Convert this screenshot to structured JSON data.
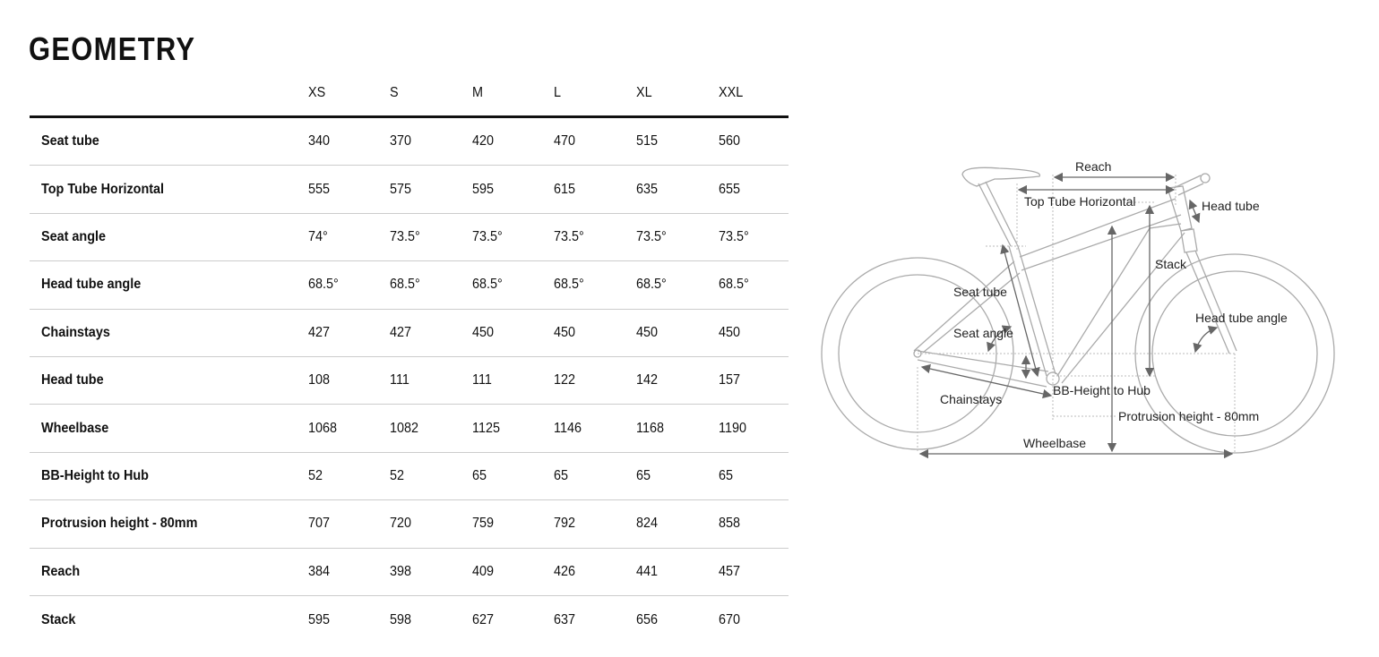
{
  "title": "GEOMETRY",
  "table": {
    "sizes": [
      "XS",
      "S",
      "M",
      "L",
      "XL",
      "XXL"
    ],
    "rows": [
      {
        "label": "Seat tube",
        "values": [
          "340",
          "370",
          "420",
          "470",
          "515",
          "560"
        ]
      },
      {
        "label": "Top Tube Horizontal",
        "values": [
          "555",
          "575",
          "595",
          "615",
          "635",
          "655"
        ]
      },
      {
        "label": "Seat angle",
        "values": [
          "74°",
          "73.5°",
          "73.5°",
          "73.5°",
          "73.5°",
          "73.5°"
        ]
      },
      {
        "label": "Head tube angle",
        "values": [
          "68.5°",
          "68.5°",
          "68.5°",
          "68.5°",
          "68.5°",
          "68.5°"
        ]
      },
      {
        "label": "Chainstays",
        "values": [
          "427",
          "427",
          "450",
          "450",
          "450",
          "450"
        ]
      },
      {
        "label": "Head tube",
        "values": [
          "108",
          "111",
          "111",
          "122",
          "142",
          "157"
        ]
      },
      {
        "label": "Wheelbase",
        "values": [
          "1068",
          "1082",
          "1125",
          "1146",
          "1168",
          "1190"
        ]
      },
      {
        "label": "BB-Height to Hub",
        "values": [
          "52",
          "52",
          "65",
          "65",
          "65",
          "65"
        ]
      },
      {
        "label": "Protrusion height - 80mm",
        "values": [
          "707",
          "720",
          "759",
          "792",
          "824",
          "858"
        ]
      },
      {
        "label": "Reach",
        "values": [
          "384",
          "398",
          "409",
          "426",
          "441",
          "457"
        ]
      },
      {
        "label": "Stack",
        "values": [
          "595",
          "598",
          "627",
          "637",
          "656",
          "670"
        ]
      }
    ]
  },
  "diagram": {
    "labels": {
      "reach": "Reach",
      "top_tube": "Top Tube Horizontal",
      "head_tube": "Head tube",
      "stack": "Stack",
      "seat_tube": "Seat tube",
      "seat_angle": "Seat angle",
      "head_tube_angle": "Head tube angle",
      "bb_height": "BB-Height to Hub",
      "chainstays": "Chainstays",
      "protrusion": "Protrusion height - 80mm",
      "wheelbase": "Wheelbase"
    },
    "colors": {
      "frame": "#aaaaaa",
      "dimension": "#666666"
    }
  }
}
